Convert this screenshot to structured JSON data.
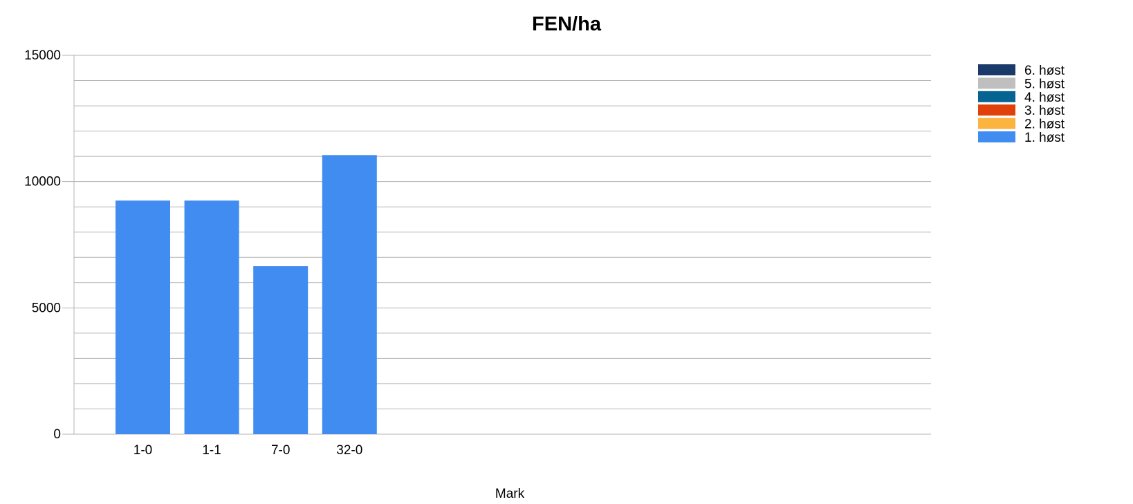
{
  "chart_data": {
    "type": "bar",
    "title": "FEN/ha",
    "xlabel": "Mark",
    "ylabel": "",
    "ylim": [
      0,
      15000
    ],
    "y_ticks": [
      0,
      5000,
      10000,
      15000
    ],
    "minor_gridlines": true,
    "grid": true,
    "legend_position": "top-right",
    "categories": [
      "1-0",
      "1-1",
      "7-0",
      "32-0"
    ],
    "series": [
      {
        "name": "1. høst",
        "color": "#418cf0",
        "values": [
          9250,
          9250,
          6650,
          11050
        ]
      },
      {
        "name": "2. høst",
        "color": "#fcb441",
        "values": [
          0,
          0,
          0,
          0
        ]
      },
      {
        "name": "3. høst",
        "color": "#e0400a",
        "values": [
          0,
          0,
          0,
          0
        ]
      },
      {
        "name": "4. høst",
        "color": "#056492",
        "values": [
          0,
          0,
          0,
          0
        ]
      },
      {
        "name": "5. høst",
        "color": "#bfbfbf",
        "values": [
          0,
          0,
          0,
          0
        ]
      },
      {
        "name": "6. høst",
        "color": "#1a3b69",
        "values": [
          0,
          0,
          0,
          0
        ]
      }
    ],
    "legend_order": [
      "6. høst",
      "5. høst",
      "4. høst",
      "3. høst",
      "2. høst",
      "1. høst"
    ]
  }
}
